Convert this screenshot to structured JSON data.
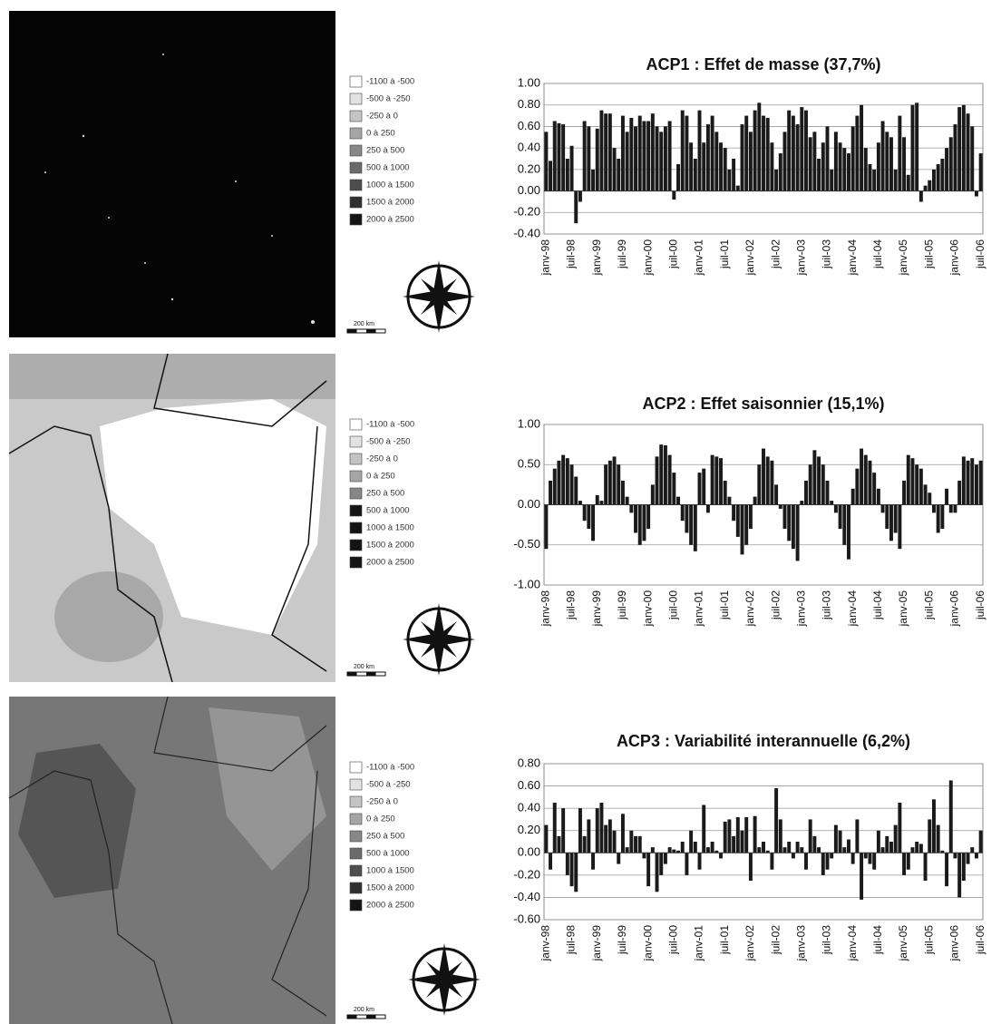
{
  "maps": [
    {
      "legend": [
        {
          "label": "-1100 à -500",
          "color": "#ffffff"
        },
        {
          "label": "-500 à -250",
          "color": "#e2e2e2"
        },
        {
          "label": "-250 à 0",
          "color": "#c4c4c4"
        },
        {
          "label": "0 à 250",
          "color": "#a5a5a5"
        },
        {
          "label": "250 à 500",
          "color": "#878787"
        },
        {
          "label": "500 à 1000",
          "color": "#6a6a6a"
        },
        {
          "label": "1000 à 1500",
          "color": "#4d4d4d"
        },
        {
          "label": "1500 à 2000",
          "color": "#303030"
        },
        {
          "label": "2000 à 2500",
          "color": "#141414"
        }
      ],
      "scale_label": "200 km"
    },
    {
      "legend": [
        {
          "label": "-1100 à -500",
          "color": "#ffffff"
        },
        {
          "label": "-500 à -250",
          "color": "#e2e2e2"
        },
        {
          "label": "-250 à 0",
          "color": "#c4c4c4"
        },
        {
          "label": "0 à 250",
          "color": "#a5a5a5"
        },
        {
          "label": "250 à 500",
          "color": "#878787"
        },
        {
          "label": "500 à 1000",
          "color": "#141414"
        },
        {
          "label": "1000 à 1500",
          "color": "#141414"
        },
        {
          "label": "1500 à 2000",
          "color": "#141414"
        },
        {
          "label": "2000 à 2500",
          "color": "#141414"
        }
      ],
      "scale_label": "200 km"
    },
    {
      "legend": [
        {
          "label": "-1100 à -500",
          "color": "#ffffff"
        },
        {
          "label": "-500 à -250",
          "color": "#e2e2e2"
        },
        {
          "label": "-250 à 0",
          "color": "#c4c4c4"
        },
        {
          "label": "0 à 250",
          "color": "#a5a5a5"
        },
        {
          "label": "250 à 500",
          "color": "#878787"
        },
        {
          "label": "500 à 1000",
          "color": "#6a6a6a"
        },
        {
          "label": "1000 à 1500",
          "color": "#4d4d4d"
        },
        {
          "label": "1500 à 2000",
          "color": "#303030"
        },
        {
          "label": "2000 à 2500",
          "color": "#141414"
        }
      ],
      "scale_label": "200 km"
    }
  ],
  "chart_data": [
    {
      "type": "bar",
      "title": "ACP1 : Effet de masse (37,7%)",
      "color": "#1a1a1a",
      "grid": true,
      "categories": [
        "janv-98",
        null,
        null,
        null,
        null,
        null,
        "juil-98",
        null,
        null,
        null,
        null,
        null,
        "janv-99",
        null,
        null,
        null,
        null,
        null,
        "juil-99",
        null,
        null,
        null,
        null,
        null,
        "janv-00",
        null,
        null,
        null,
        null,
        null,
        "juil-00",
        null,
        null,
        null,
        null,
        null,
        "janv-01",
        null,
        null,
        null,
        null,
        null,
        "juil-01",
        null,
        null,
        null,
        null,
        null,
        "janv-02",
        null,
        null,
        null,
        null,
        null,
        "juil-02",
        null,
        null,
        null,
        null,
        null,
        "janv-03",
        null,
        null,
        null,
        null,
        null,
        "juil-03",
        null,
        null,
        null,
        null,
        null,
        "janv-04",
        null,
        null,
        null,
        null,
        null,
        "juil-04",
        null,
        null,
        null,
        null,
        null,
        "janv-05",
        null,
        null,
        null,
        null,
        null,
        "juil-05",
        null,
        null,
        null,
        null,
        null,
        "janv-06",
        null,
        null,
        null,
        null,
        null,
        "juil-06"
      ],
      "values": [
        0.55,
        0.28,
        0.65,
        0.63,
        0.62,
        0.3,
        0.42,
        -0.3,
        -0.1,
        0.65,
        0.6,
        0.2,
        0.58,
        0.75,
        0.72,
        0.72,
        0.4,
        0.3,
        0.7,
        0.55,
        0.68,
        0.6,
        0.7,
        0.65,
        0.65,
        0.72,
        0.6,
        0.55,
        0.6,
        0.65,
        -0.08,
        0.25,
        0.75,
        0.7,
        0.45,
        0.3,
        0.75,
        0.45,
        0.62,
        0.7,
        0.55,
        0.45,
        0.4,
        0.2,
        0.3,
        0.05,
        0.62,
        0.7,
        0.55,
        0.75,
        0.82,
        0.7,
        0.68,
        0.45,
        0.2,
        0.35,
        0.55,
        0.75,
        0.7,
        0.62,
        0.78,
        0.75,
        0.5,
        0.55,
        0.3,
        0.45,
        0.6,
        0.2,
        0.55,
        0.45,
        0.4,
        0.35,
        0.6,
        0.7,
        0.8,
        0.4,
        0.25,
        0.2,
        0.45,
        0.65,
        0.55,
        0.5,
        0.2,
        0.7,
        0.5,
        0.15,
        0.8,
        0.82,
        -0.1,
        0.05,
        0.1,
        0.2,
        0.25,
        0.3,
        0.4,
        0.5,
        0.62,
        0.78,
        0.8,
        0.72,
        0.6,
        -0.05,
        0.35
      ],
      "ylim": [
        -0.4,
        1.0
      ],
      "yticks": [
        {
          "value": -0.4,
          "label": "-0.40"
        },
        {
          "value": -0.2,
          "label": "-0.20"
        },
        {
          "value": 0,
          "label": "0.00"
        },
        {
          "value": 0.2,
          "label": "0.20"
        },
        {
          "value": 0.4,
          "label": "0.40"
        },
        {
          "value": 0.6,
          "label": "0.60"
        },
        {
          "value": 0.8,
          "label": "0.80"
        },
        {
          "value": 1.0,
          "label": "1.00"
        }
      ]
    },
    {
      "type": "bar",
      "title": "ACP2 : Effet saisonnier (15,1%)",
      "color": "#1a1a1a",
      "grid": true,
      "categories": [
        "janv-98",
        null,
        null,
        null,
        null,
        null,
        "juil-98",
        null,
        null,
        null,
        null,
        null,
        "janv-99",
        null,
        null,
        null,
        null,
        null,
        "juil-99",
        null,
        null,
        null,
        null,
        null,
        "janv-00",
        null,
        null,
        null,
        null,
        null,
        "juil-00",
        null,
        null,
        null,
        null,
        null,
        "janv-01",
        null,
        null,
        null,
        null,
        null,
        "juil-01",
        null,
        null,
        null,
        null,
        null,
        "janv-02",
        null,
        null,
        null,
        null,
        null,
        "juil-02",
        null,
        null,
        null,
        null,
        null,
        "janv-03",
        null,
        null,
        null,
        null,
        null,
        "juil-03",
        null,
        null,
        null,
        null,
        null,
        "janv-04",
        null,
        null,
        null,
        null,
        null,
        "juil-04",
        null,
        null,
        null,
        null,
        null,
        "janv-05",
        null,
        null,
        null,
        null,
        null,
        "juil-05",
        null,
        null,
        null,
        null,
        null,
        "janv-06",
        null,
        null,
        null,
        null,
        null,
        "juil-06"
      ],
      "values": [
        -0.55,
        0.3,
        0.45,
        0.55,
        0.62,
        0.58,
        0.5,
        0.35,
        0.05,
        -0.2,
        -0.3,
        -0.45,
        0.12,
        0.05,
        0.5,
        0.55,
        0.6,
        0.5,
        0.3,
        0.1,
        -0.1,
        -0.35,
        -0.5,
        -0.45,
        -0.3,
        0.25,
        0.6,
        0.75,
        0.74,
        0.62,
        0.4,
        0.1,
        -0.2,
        -0.35,
        -0.5,
        -0.58,
        0.4,
        0.45,
        -0.1,
        0.62,
        0.6,
        0.58,
        0.3,
        0.1,
        -0.2,
        -0.4,
        -0.62,
        -0.5,
        -0.3,
        0.1,
        0.5,
        0.7,
        0.6,
        0.55,
        0.25,
        -0.05,
        -0.3,
        -0.45,
        -0.55,
        -0.7,
        0.05,
        0.3,
        0.5,
        0.68,
        0.6,
        0.5,
        0.3,
        0.05,
        -0.1,
        -0.3,
        -0.5,
        -0.68,
        0.2,
        0.45,
        0.7,
        0.62,
        0.55,
        0.4,
        0.2,
        -0.1,
        -0.3,
        -0.45,
        -0.35,
        -0.55,
        0.3,
        0.62,
        0.58,
        0.5,
        0.45,
        0.25,
        0.15,
        -0.1,
        -0.35,
        -0.3,
        0.2,
        -0.1,
        -0.1,
        0.3,
        0.6,
        0.55,
        0.58,
        0.5,
        0.55
      ],
      "ylim": [
        -1.0,
        1.0
      ],
      "yticks": [
        {
          "value": -1.0,
          "label": "-1.00"
        },
        {
          "value": -0.5,
          "label": "-0.50"
        },
        {
          "value": 0,
          "label": "0.00"
        },
        {
          "value": 0.5,
          "label": "0.50"
        },
        {
          "value": 1.0,
          "label": "1.00"
        }
      ]
    },
    {
      "type": "bar",
      "title": "ACP3 : Variabilité interannuelle (6,2%)",
      "color": "#1a1a1a",
      "grid": true,
      "categories": [
        "janv-98",
        null,
        null,
        null,
        null,
        null,
        "juil-98",
        null,
        null,
        null,
        null,
        null,
        "janv-99",
        null,
        null,
        null,
        null,
        null,
        "juil-99",
        null,
        null,
        null,
        null,
        null,
        "janv-00",
        null,
        null,
        null,
        null,
        null,
        "juil-00",
        null,
        null,
        null,
        null,
        null,
        "janv-01",
        null,
        null,
        null,
        null,
        null,
        "juil-01",
        null,
        null,
        null,
        null,
        null,
        "janv-02",
        null,
        null,
        null,
        null,
        null,
        "juil-02",
        null,
        null,
        null,
        null,
        null,
        "janv-03",
        null,
        null,
        null,
        null,
        null,
        "juil-03",
        null,
        null,
        null,
        null,
        null,
        "janv-04",
        null,
        null,
        null,
        null,
        null,
        "juil-04",
        null,
        null,
        null,
        null,
        null,
        "janv-05",
        null,
        null,
        null,
        null,
        null,
        "juil-05",
        null,
        null,
        null,
        null,
        null,
        "janv-06",
        null,
        null,
        null,
        null,
        null,
        "juil-06"
      ],
      "values": [
        0.25,
        -0.15,
        0.45,
        0.15,
        0.4,
        -0.2,
        -0.3,
        -0.35,
        0.4,
        0.15,
        0.3,
        -0.15,
        0.4,
        0.45,
        0.25,
        0.3,
        0.2,
        -0.1,
        0.35,
        0.05,
        0.2,
        0.15,
        0.15,
        -0.05,
        -0.3,
        0.05,
        -0.35,
        -0.2,
        -0.1,
        0.05,
        0.03,
        0.02,
        0.1,
        -0.2,
        0.2,
        0.1,
        -0.15,
        0.43,
        0.05,
        0.1,
        0.02,
        -0.05,
        0.28,
        0.3,
        0.15,
        0.32,
        0.2,
        0.32,
        -0.25,
        0.33,
        0.05,
        0.1,
        0.02,
        -0.15,
        0.58,
        0.3,
        0.05,
        0.1,
        -0.05,
        0.1,
        0.05,
        -0.15,
        0.3,
        0.15,
        0.05,
        -0.2,
        -0.15,
        -0.05,
        0.25,
        0.2,
        0.05,
        0.12,
        -0.1,
        0.3,
        -0.42,
        -0.05,
        -0.1,
        -0.15,
        0.2,
        0.05,
        0.15,
        0.1,
        0.25,
        0.45,
        -0.2,
        -0.15,
        0.05,
        0.1,
        0.08,
        -0.25,
        0.3,
        0.48,
        0.25,
        0.02,
        -0.3,
        0.65,
        -0.05,
        -0.4,
        -0.25,
        -0.1,
        0.05,
        -0.05,
        0.2
      ],
      "ylim": [
        -0.6,
        0.8
      ],
      "yticks": [
        {
          "value": -0.6,
          "label": "-0.60"
        },
        {
          "value": -0.4,
          "label": "-0.40"
        },
        {
          "value": -0.2,
          "label": "-0.20"
        },
        {
          "value": 0,
          "label": "0.00"
        },
        {
          "value": 0.2,
          "label": "0.20"
        },
        {
          "value": 0.4,
          "label": "0.40"
        },
        {
          "value": 0.6,
          "label": "0.60"
        },
        {
          "value": 0.8,
          "label": "0.80"
        }
      ]
    }
  ]
}
